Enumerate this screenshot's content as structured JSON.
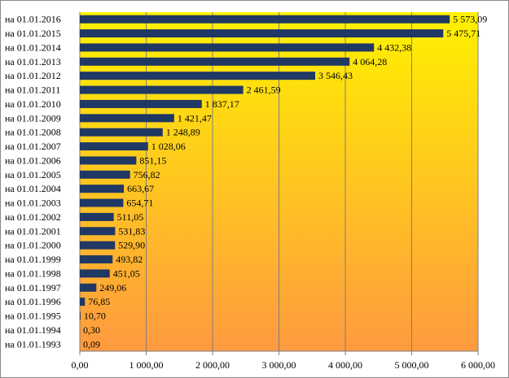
{
  "colors": {
    "bar": "#1f3864",
    "plot_gradient_top": "#fff200",
    "plot_gradient_bottom": "#ff9a40",
    "gridline": "#7f7f7f",
    "axis": "#7f7f7f"
  },
  "chart_data": {
    "type": "bar",
    "orientation": "horizontal",
    "title": "",
    "xlabel": "",
    "ylabel": "",
    "xlim": [
      0,
      6000
    ],
    "x_ticks": [
      0,
      1000,
      2000,
      3000,
      4000,
      5000,
      6000
    ],
    "x_tick_labels": [
      "0,00",
      "1 000,00",
      "2 000,00",
      "3 000,00",
      "4 000,00",
      "5 000,00",
      "6 000,00"
    ],
    "grid": "vertical major gridlines",
    "legend": "none",
    "categories": [
      "на 01.01.2016",
      "на 01.01.2015",
      "на 01.01.2014",
      "на 01.01.2013",
      "на 01.01.2012",
      "на 01.01.2011",
      "на 01.01.2010",
      "на 01.01.2009",
      "на 01.01.2008",
      "на 01.01.2007",
      "на 01.01.2006",
      "на 01.01.2005",
      "на 01.01.2004",
      "на 01.01.2003",
      "на 01.01.2002",
      "на 01.01.2001",
      "на 01.01.2000",
      "на 01.01.1999",
      "на 01.01.1998",
      "на 01.01.1997",
      "на 01.01.1996",
      "на 01.01.1995",
      "на 01.01.1994",
      "на 01.01.1993"
    ],
    "values": [
      5573.09,
      5475.71,
      4432.38,
      4064.28,
      3546.43,
      2461.59,
      1837.17,
      1421.47,
      1248.89,
      1028.06,
      851.15,
      756.82,
      663.67,
      654.71,
      511.05,
      531.83,
      529.9,
      493.82,
      451.05,
      249.06,
      76.85,
      10.7,
      0.3,
      0.09
    ],
    "value_labels": [
      "5 573,09",
      "5 475,71",
      "4 432,38",
      "4 064,28",
      "3 546,43",
      "2 461,59",
      "1 837,17",
      "1 421,47",
      "1 248,89",
      "1 028,06",
      "851,15",
      "756,82",
      "663,67",
      "654,71",
      "511,05",
      "531,83",
      "529,90",
      "493,82",
      "451,05",
      "249,06",
      "76,85",
      "10,70",
      "0,30",
      "0,09"
    ]
  }
}
